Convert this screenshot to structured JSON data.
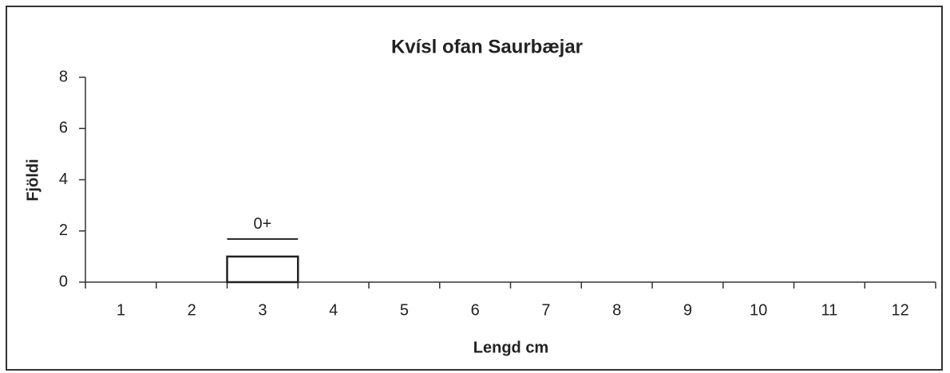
{
  "chart_data": {
    "type": "bar",
    "title": "Kvísl ofan Saurbæjar",
    "x_label": "Lengd cm",
    "y_label": "Fjöldi",
    "categories": [
      "1",
      "2",
      "3",
      "4",
      "5",
      "6",
      "7",
      "8",
      "9",
      "10",
      "11",
      "12"
    ],
    "values": [
      0,
      0,
      1,
      0,
      0,
      0,
      0,
      0,
      0,
      0,
      0,
      0
    ],
    "color": "#ffffff",
    "ylim": [
      0,
      8
    ],
    "yticks": [
      0,
      2,
      4,
      6,
      8
    ],
    "grid": false,
    "annotation": {
      "text": "0+",
      "category": "3"
    }
  }
}
